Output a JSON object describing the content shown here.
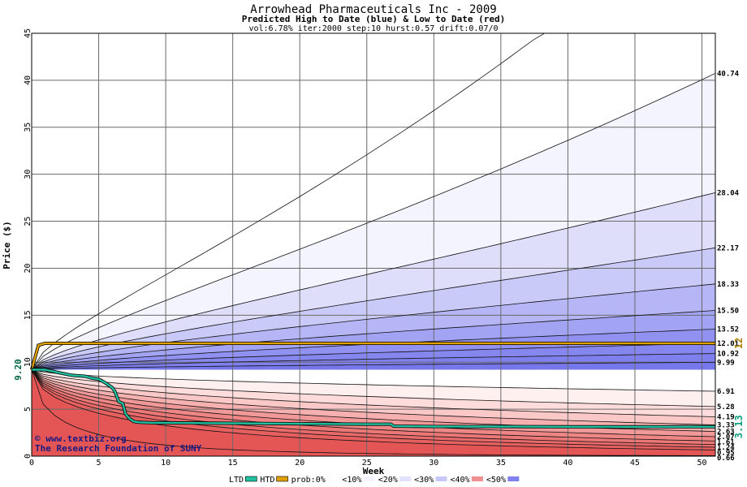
{
  "chart_data": {
    "type": "area",
    "title": "Arrowhead Pharmaceuticals Inc - 2009",
    "subtitle": "Predicted High to Date (blue) &  Low to Date (red)",
    "params": "vol:6.78% iter:2000 step:10 hurst:0.57 drift:0.07/0",
    "xlabel": "Week",
    "ylabel": "Price ($)",
    "xlim": [
      0,
      51
    ],
    "ylim": [
      0,
      45
    ],
    "xticks": [
      0,
      5,
      10,
      15,
      20,
      25,
      30,
      35,
      40,
      45,
      50
    ],
    "yticks": [
      0,
      5,
      10,
      15,
      20,
      25,
      30,
      35,
      40,
      45
    ],
    "grid": true,
    "start_price": 9.2,
    "start_price_label": "9.20",
    "high_levels": [
      {
        "label": "40.74",
        "value": 40.74
      },
      {
        "label": "28.04",
        "value": 28.04
      },
      {
        "label": "22.17",
        "value": 22.17
      },
      {
        "label": "18.33",
        "value": 18.33
      },
      {
        "label": "15.50",
        "value": 15.5
      },
      {
        "label": "13.52",
        "value": 13.52
      },
      {
        "label": "12.01",
        "value": 12.01
      },
      {
        "label": "10.92",
        "value": 10.92
      },
      {
        "label": "9.99",
        "value": 9.99
      }
    ],
    "low_levels": [
      {
        "label": "6.91",
        "value": 6.91
      },
      {
        "label": "5.28",
        "value": 5.28
      },
      {
        "label": "4.19",
        "value": 4.19
      },
      {
        "label": "3.33",
        "value": 3.33
      },
      {
        "label": "2.63",
        "value": 2.63
      },
      {
        "label": "2.07",
        "value": 2.07
      },
      {
        "label": "1.61",
        "value": 1.61
      },
      {
        "label": "1.24",
        "value": 1.24
      },
      {
        "label": "0.95",
        "value": 0.95
      },
      {
        "label": "0.66",
        "value": 0.66
      }
    ],
    "htd_series": {
      "name": "HTD",
      "color": "#e0a000",
      "last_label": "12",
      "x": [
        0,
        0.5,
        1,
        2,
        5,
        10,
        15,
        20,
        25,
        30,
        35,
        40,
        45,
        51
      ],
      "y": [
        9.2,
        11.8,
        12.01,
        12.01,
        12.01,
        12.01,
        12.01,
        12.01,
        12.01,
        12.01,
        12.01,
        12.01,
        12.01,
        12.01
      ]
    },
    "ltd_series": {
      "name": "LTD",
      "color": "#20c0a0",
      "last_label": "3.13",
      "x": [
        0,
        0.5,
        1,
        2,
        3,
        4,
        4.5,
        5,
        5.5,
        6,
        6.2,
        6.5,
        6.8,
        7,
        7.3,
        7.6,
        8,
        9,
        10,
        15,
        20,
        25,
        26.8,
        27,
        30,
        35,
        40,
        45,
        51
      ],
      "y": [
        9.2,
        9.2,
        9.2,
        8.9,
        8.6,
        8.5,
        8.3,
        8.2,
        7.8,
        7.3,
        6.9,
        5.8,
        5.6,
        4.5,
        4.0,
        3.7,
        3.6,
        3.55,
        3.55,
        3.5,
        3.45,
        3.4,
        3.4,
        3.2,
        3.15,
        3.15,
        3.13,
        3.13,
        3.13
      ]
    },
    "legend": {
      "placement": "bottom",
      "items": [
        {
          "label": "LTD",
          "swatch": "#20c0a0"
        },
        {
          "label": "HTD",
          "swatch": "#e0a000"
        },
        {
          "label": "prob:0%",
          "swatch": "#ffffff"
        },
        {
          "label": "<10%",
          "swatch": "#f4f4ff"
        },
        {
          "label": "<20%",
          "swatch": "#e2e2fc"
        },
        {
          "label": "<30%",
          "swatch": "#c8c8f8"
        },
        {
          "label": "<40%",
          "swatch": "#f09090"
        },
        {
          "label": "<50%",
          "swatch": "#8080f0"
        }
      ]
    },
    "watermark": [
      "© www.textbiz.org",
      "The Research Foundation of SUNY"
    ],
    "colors": {
      "blue_bands": [
        "#f4f4ff",
        "#dedefb",
        "#cacaf8",
        "#b6b6f6",
        "#a3a3f3",
        "#9191f1",
        "#8686ef",
        "#7f7fee",
        "#7777ec"
      ],
      "red_bands": [
        "#fff0f0",
        "#ffdcdc",
        "#fbc8c8",
        "#f6b0b0",
        "#f19999",
        "#ee8686",
        "#eb7777",
        "#e86a6a",
        "#e66060",
        "#e45656"
      ]
    }
  }
}
